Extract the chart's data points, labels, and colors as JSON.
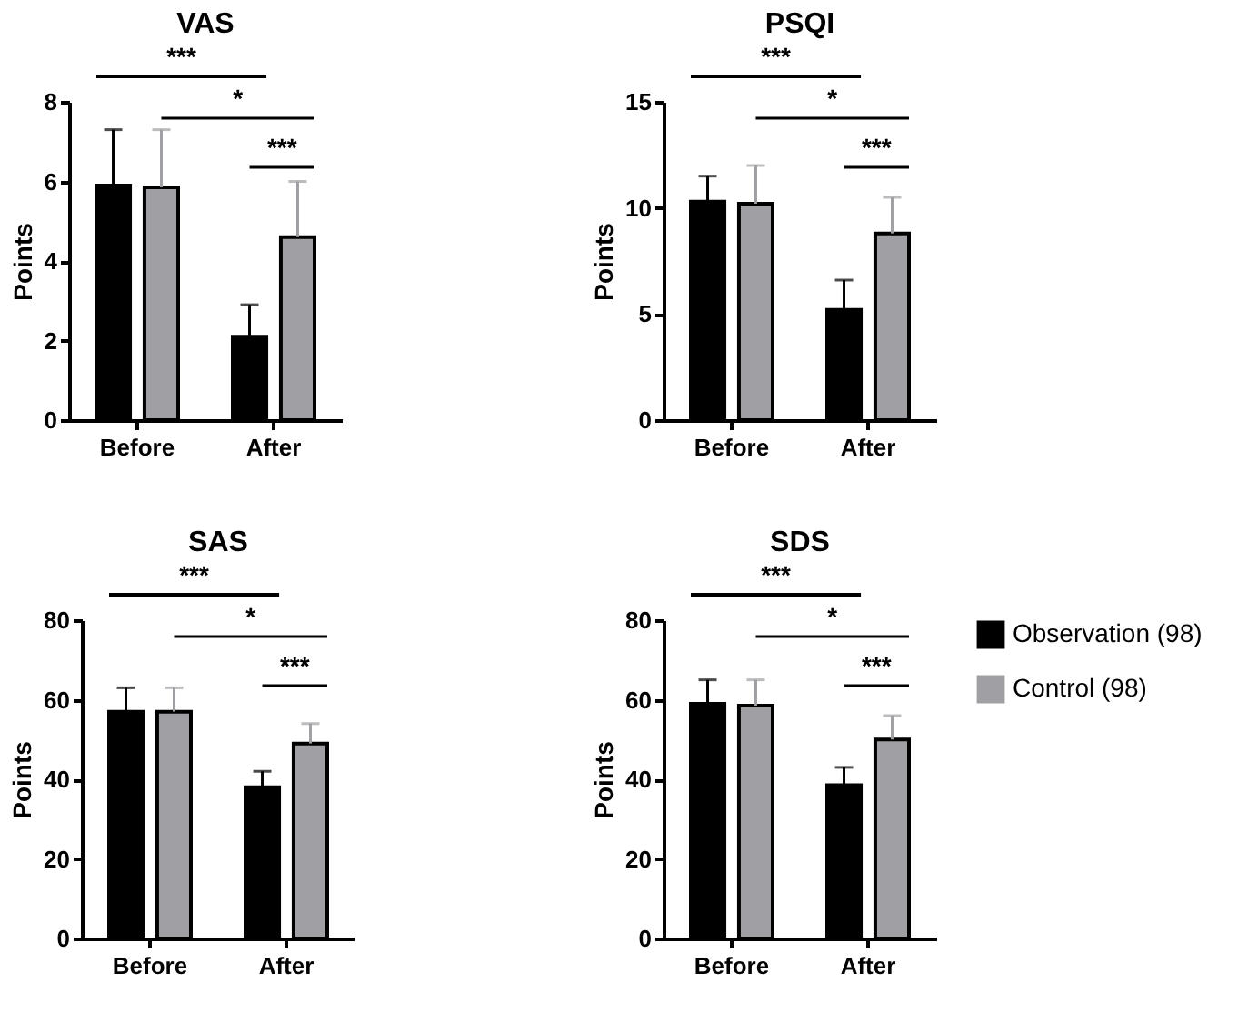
{
  "chart_data": [
    {
      "type": "bar",
      "title": "VAS",
      "ylabel": "Points",
      "categories": [
        "Before",
        "After"
      ],
      "ylim": [
        0,
        8
      ],
      "yticks": [
        0,
        2,
        4,
        6,
        8
      ],
      "grid": false,
      "legend": false,
      "annotations": [
        "***",
        "*",
        "***"
      ],
      "series": [
        {
          "color": "#000000",
          "values": [
            5.9,
            2.1
          ],
          "errors": [
            [
              5.9,
              7.3
            ],
            [
              2.1,
              2.9
            ]
          ]
        },
        {
          "color": "#a0a0a4",
          "values": [
            5.85,
            4.6
          ],
          "errors": [
            [
              5.85,
              7.3
            ],
            [
              4.6,
              6.0
            ]
          ]
        }
      ]
    },
    {
      "type": "bar",
      "title": "PSQI",
      "ylabel": "Points",
      "categories": [
        "Before",
        "After"
      ],
      "ylim": [
        0,
        15
      ],
      "yticks": [
        0,
        5,
        10,
        15
      ],
      "grid": false,
      "legend": false,
      "annotations": [
        "***",
        "*",
        "***"
      ],
      "series": [
        {
          "color": "#000000",
          "values": [
            10.3,
            5.2
          ],
          "errors": [
            [
              10.3,
              11.5
            ],
            [
              5.2,
              6.6
            ]
          ]
        },
        {
          "color": "#a0a0a4",
          "values": [
            10.2,
            8.8
          ],
          "errors": [
            [
              10.2,
              12.0
            ],
            [
              8.8,
              10.5
            ]
          ]
        }
      ]
    },
    {
      "type": "bar",
      "title": "SAS",
      "ylabel": "Points",
      "categories": [
        "Before",
        "After"
      ],
      "ylim": [
        0,
        80
      ],
      "yticks": [
        0,
        20,
        40,
        60,
        80
      ],
      "grid": false,
      "legend": false,
      "annotations": [
        "***",
        "*",
        "***"
      ],
      "series": [
        {
          "color": "#000000",
          "values": [
            57,
            38
          ],
          "errors": [
            [
              57,
              63
            ],
            [
              38,
              42
            ]
          ]
        },
        {
          "color": "#a0a0a4",
          "values": [
            57,
            49
          ],
          "errors": [
            [
              57,
              63
            ],
            [
              49,
              54
            ]
          ]
        }
      ]
    },
    {
      "type": "bar",
      "title": "SDS",
      "ylabel": "Points",
      "categories": [
        "Before",
        "After"
      ],
      "ylim": [
        0,
        80
      ],
      "yticks": [
        0,
        20,
        40,
        60,
        80
      ],
      "grid": false,
      "legend": "right",
      "annotations": [
        "***",
        "*",
        "***"
      ],
      "series": [
        {
          "name": "Observation (98)",
          "color": "#000000",
          "values": [
            59,
            38.5
          ],
          "errors": [
            [
              59,
              65
            ],
            [
              38.5,
              43
            ]
          ]
        },
        {
          "name": "Control (98)",
          "color": "#a0a0a4",
          "values": [
            58.5,
            50
          ],
          "errors": [
            [
              58.5,
              65
            ],
            [
              50,
              56
            ]
          ]
        }
      ]
    }
  ]
}
